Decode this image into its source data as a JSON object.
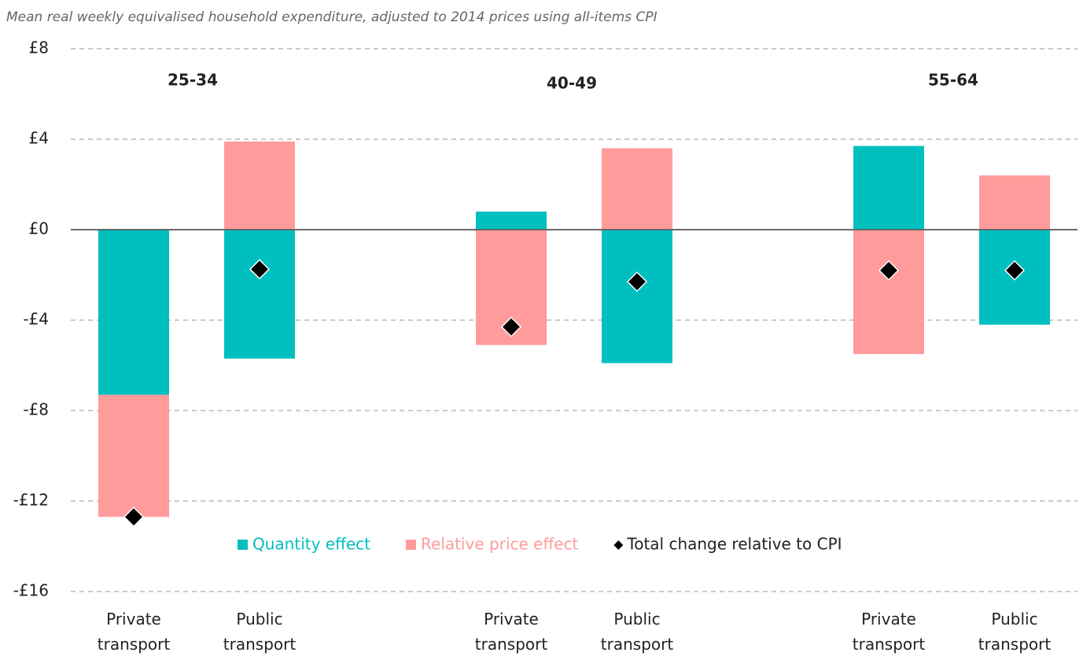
{
  "chart_data": {
    "type": "stacked-bar",
    "subtitle": "Mean real weekly equivalised household expenditure, adjusted to 2014 prices using all-items CPI",
    "groups": [
      "25-34",
      "40-49",
      "55-64"
    ],
    "categories": [
      "Private transport",
      "Public transport",
      "Private transport",
      "Public transport",
      "Private transport",
      "Public transport"
    ],
    "series": [
      {
        "name": "Quantity effect",
        "color": "#00bfbf",
        "values": [
          -7.3,
          -5.7,
          0.8,
          -5.9,
          3.7,
          -4.2
        ]
      },
      {
        "name": "Relative price effect",
        "color": "#ff9b9b",
        "values": [
          -5.4,
          3.9,
          -5.1,
          3.6,
          -5.5,
          2.4
        ]
      }
    ],
    "total": {
      "name": "Total change relative to CPI",
      "color": "#000000",
      "values": [
        -12.7,
        -1.75,
        -4.3,
        -2.3,
        -1.8,
        -1.8
      ]
    },
    "ylim": [
      -16,
      8
    ],
    "yticks": [
      {
        "value": -16,
        "label": "-£16"
      },
      {
        "value": -12,
        "label": "-£12"
      },
      {
        "value": -8,
        "label": "-£8"
      },
      {
        "value": -4,
        "label": "-£4"
      },
      {
        "value": 0,
        "label": "£0"
      },
      {
        "value": 4,
        "label": "£4"
      },
      {
        "value": 8,
        "label": "£8"
      }
    ],
    "grid": true
  }
}
